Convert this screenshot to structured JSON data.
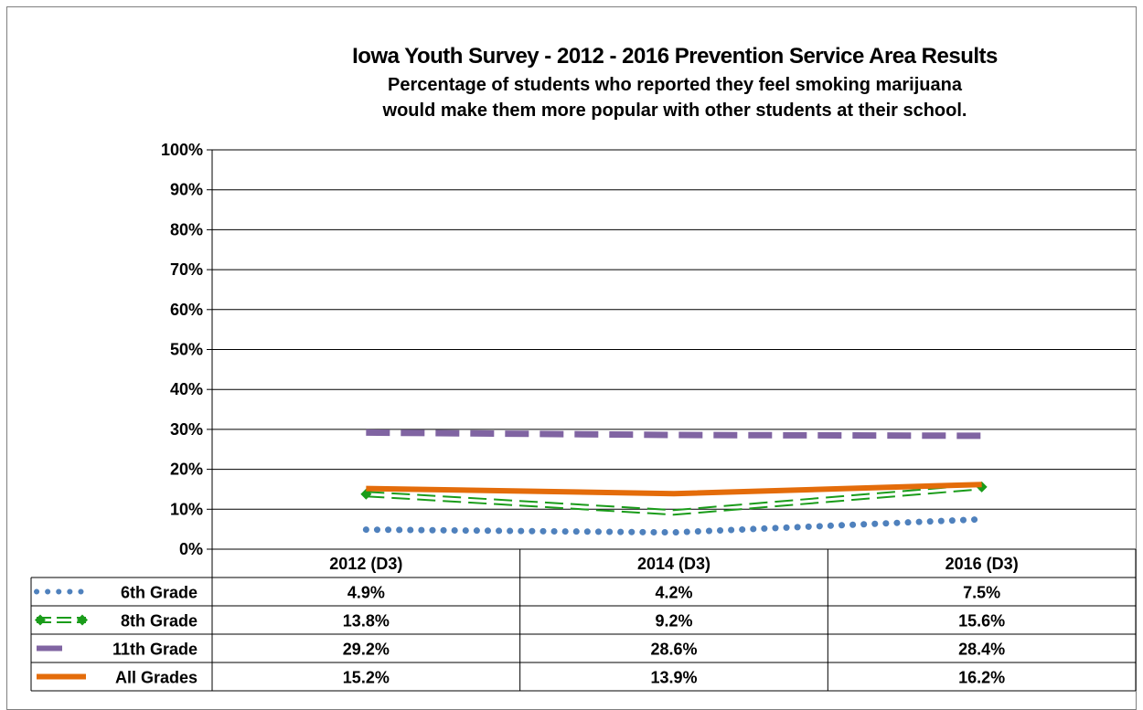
{
  "chart_data": {
    "type": "line",
    "title": "Iowa Youth Survey - 2012 - 2016 Prevention Service Area Results",
    "subtitle_lines": [
      "Percentage of students who reported they feel smoking marijuana",
      "would make them more popular  with other students at their school."
    ],
    "categories": [
      "2012 (D3)",
      "2014 (D3)",
      "2016 (D3)"
    ],
    "ylim": [
      0,
      100
    ],
    "yticks": [
      0,
      10,
      20,
      30,
      40,
      50,
      60,
      70,
      80,
      90,
      100
    ],
    "ytick_labels": [
      "0%",
      "10%",
      "20%",
      "30%",
      "40%",
      "50%",
      "60%",
      "70%",
      "80%",
      "90%",
      "100%"
    ],
    "grid": true,
    "legend": "data-table",
    "series": [
      {
        "name": "6th Grade",
        "values": [
          4.9,
          4.2,
          7.5
        ],
        "labels": [
          "4.9%",
          "4.2%",
          "7.5%"
        ],
        "color": "#4f81bd",
        "style": "dotted"
      },
      {
        "name": "8th Grade",
        "values": [
          13.8,
          9.2,
          15.6
        ],
        "labels": [
          "13.8%",
          "9.2%",
          "15.6%"
        ],
        "color": "#1a9c1a",
        "style": "double-dashed-diamond"
      },
      {
        "name": "11th Grade",
        "values": [
          29.2,
          28.6,
          28.4
        ],
        "labels": [
          "29.2%",
          "28.6%",
          "28.4%"
        ],
        "color": "#8064a2",
        "style": "dashed"
      },
      {
        "name": "All Grades",
        "values": [
          15.2,
          13.9,
          16.2
        ],
        "labels": [
          "15.2%",
          "13.9%",
          "16.2%"
        ],
        "color": "#e46c0a",
        "style": "solid"
      }
    ]
  }
}
